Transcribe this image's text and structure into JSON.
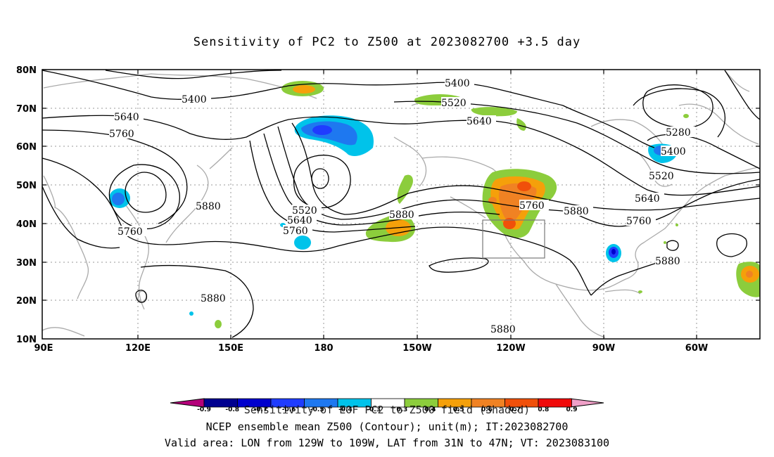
{
  "title": "Sensitivity of PC2 to Z500 at 2023082700 +3.5 day",
  "lat_labels": [
    "80N",
    "70N",
    "60N",
    "50N",
    "40N",
    "30N",
    "20N",
    "10N"
  ],
  "lon_labels": [
    "90E",
    "120E",
    "150E",
    "180",
    "150W",
    "120W",
    "90W",
    "60W"
  ],
  "contour_labels": {
    "c5400_left": "5400",
    "c5400_top": "5400",
    "c5520_top": "5520",
    "c5640_top": "5640",
    "c5640_left": "5640",
    "c5760_left": "5760",
    "c5280": "5280",
    "c5400_east": "5400",
    "c5520_east": "5520",
    "c5640_east": "5640",
    "c5760_east": "5760",
    "c5880_east": "5880",
    "c5880_mid": "5880",
    "c5760_mid": "5760",
    "c5880_center": "5880",
    "c5520_trough": "5520",
    "c5640_trough": "5640",
    "c5760_trough": "5760",
    "c5880_wpac": "5880",
    "c5760_wpac": "5760",
    "c5880_south": "5880",
    "c5880_bottom": "5880"
  },
  "colorbar": {
    "colors": [
      "#b4007a",
      "#00008f",
      "#0000cd",
      "#1f3cff",
      "#1e78f0",
      "#00c3ea",
      "#ffffff",
      "#8ccd3c",
      "#f5a00a",
      "#f08223",
      "#f0500a",
      "#f00a0a",
      "#f0a0c8"
    ],
    "labels": [
      "-0.9",
      "-0.8",
      "-0.7",
      "-0.6",
      "-0.5",
      "-0.4",
      "-0.3",
      "0.3",
      "0.4",
      "0.5",
      "0.6",
      "0.7",
      "0.8",
      "0.9"
    ]
  },
  "caption_line1": "Sensitivity of EOF PC2 to Z500 field (Shaded)",
  "caption_line2": "NCEP ensemble mean Z500 (Contour); unit(m); IT:2023082700",
  "caption_line3": "Valid area: LON from 129W to 109W, LAT from 31N to 47N; VT: 2023083100"
}
